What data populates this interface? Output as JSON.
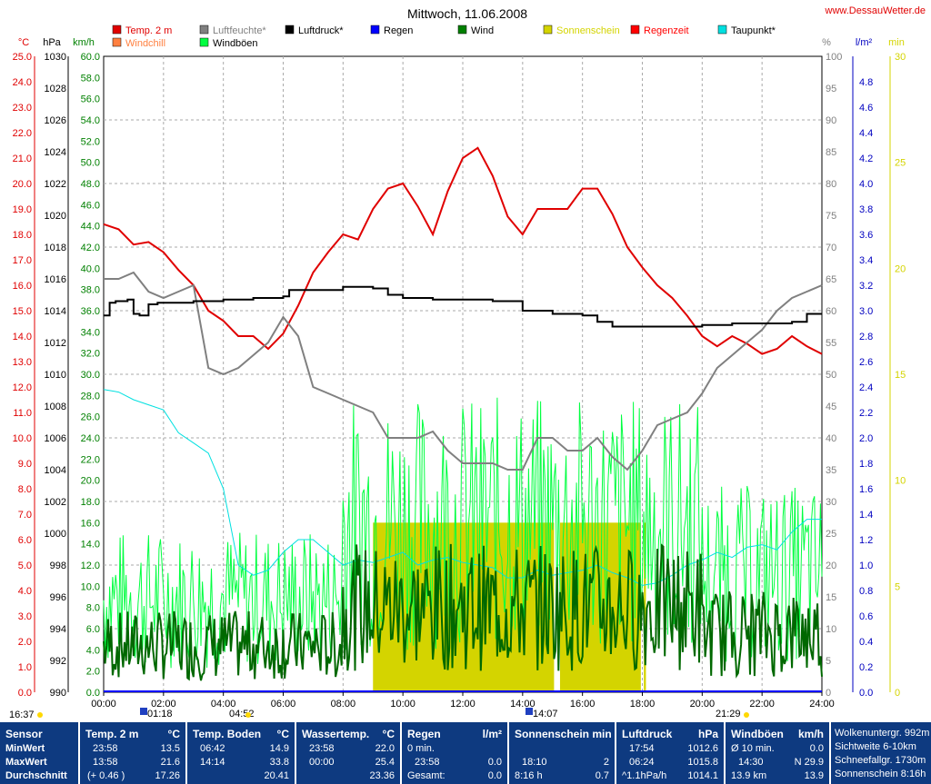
{
  "header": {
    "title": "Mittwoch, 11.06.2008",
    "website": "www.DessauWetter.de"
  },
  "legend": [
    {
      "label": "Temp. 2 m",
      "color": "#e00000"
    },
    {
      "label": "Luftfeuchte*",
      "color": "#808080"
    },
    {
      "label": "Luftdruck*",
      "color": "#000000"
    },
    {
      "label": "Regen",
      "color": "#0000ff"
    },
    {
      "label": "Wind",
      "color": "#008000"
    },
    {
      "label": "Sonnenschein",
      "color": "#d4d400"
    },
    {
      "label": "Regenzeit",
      "color": "#ff0000"
    },
    {
      "label": "Taupunkt*",
      "color": "#00e0e0"
    },
    {
      "label": "Windchill",
      "color": "#ff8040"
    },
    {
      "label": "Windböen",
      "color": "#00ff40"
    }
  ],
  "axis_units": {
    "temp": "°C",
    "pressure": "hPa",
    "wind": "km/h",
    "humidity": "%",
    "rain": "l/m²",
    "sun": "min"
  },
  "events": {
    "sunrise": "04:52",
    "sunset": "21:29",
    "moonrise": "01:18",
    "moonset": "14:07",
    "day_length": "16:37"
  },
  "chart_data": {
    "type": "line",
    "x_ticks": [
      "00:00",
      "02:00",
      "04:00",
      "06:00",
      "08:00",
      "10:00",
      "12:00",
      "14:00",
      "16:00",
      "18:00",
      "20:00",
      "22:00",
      "24:00"
    ],
    "axes": {
      "temp": {
        "unit": "°C",
        "range": [
          0,
          25
        ],
        "ticks": [
          "0.0",
          "1.0",
          "2.0",
          "3.0",
          "4.0",
          "5.0",
          "6.0",
          "7.0",
          "8.0",
          "9.0",
          "10.0",
          "11.0",
          "12.0",
          "13.0",
          "14.0",
          "15.0",
          "16.0",
          "17.0",
          "18.0",
          "19.0",
          "20.0",
          "21.0",
          "22.0",
          "23.0",
          "24.0",
          "25.0"
        ]
      },
      "pressure": {
        "unit": "hPa",
        "range": [
          990,
          1030
        ],
        "ticks": [
          "990",
          "992",
          "994",
          "996",
          "998",
          "1000",
          "1002",
          "1004",
          "1006",
          "1008",
          "1010",
          "1012",
          "1014",
          "1016",
          "1018",
          "1020",
          "1022",
          "1024",
          "1026",
          "1028",
          "1030"
        ]
      },
      "wind": {
        "unit": "km/h",
        "range": [
          0,
          60
        ],
        "ticks": [
          "0.0",
          "2.0",
          "4.0",
          "6.0",
          "8.0",
          "10.0",
          "12.0",
          "14.0",
          "16.0",
          "18.0",
          "20.0",
          "22.0",
          "24.0",
          "26.0",
          "28.0",
          "30.0",
          "32.0",
          "34.0",
          "36.0",
          "38.0",
          "40.0",
          "42.0",
          "44.0",
          "46.0",
          "48.0",
          "50.0",
          "52.0",
          "54.0",
          "56.0",
          "58.0",
          "60.0"
        ]
      },
      "humidity": {
        "unit": "%",
        "range": [
          0,
          100
        ],
        "ticks": [
          "0",
          "5",
          "10",
          "15",
          "20",
          "25",
          "30",
          "35",
          "40",
          "45",
          "50",
          "55",
          "60",
          "65",
          "70",
          "75",
          "80",
          "85",
          "90",
          "95",
          "100"
        ]
      },
      "rain": {
        "unit": "l/m²",
        "range": [
          0,
          5
        ],
        "ticks": [
          "0.0",
          "0.2",
          "0.4",
          "0.6",
          "0.8",
          "1.0",
          "1.2",
          "1.4",
          "1.6",
          "1.8",
          "2.0",
          "2.2",
          "2.4",
          "2.6",
          "2.8",
          "3.0",
          "3.2",
          "3.4",
          "3.6",
          "3.8",
          "4.0",
          "4.2",
          "4.4",
          "4.6",
          "4.8"
        ]
      },
      "sun": {
        "unit": "min",
        "range": [
          0,
          30
        ],
        "ticks": [
          "0",
          "5",
          "10",
          "15",
          "20",
          "25",
          "30"
        ]
      }
    },
    "series": [
      {
        "name": "Temp. 2 m",
        "axis": "temp",
        "color": "#e00000",
        "x": [
          0,
          0.5,
          1,
          1.5,
          2,
          2.5,
          3,
          3.5,
          4,
          4.5,
          5,
          5.5,
          6,
          6.5,
          7,
          7.5,
          8,
          8.5,
          9,
          9.5,
          10,
          10.5,
          11,
          11.5,
          12,
          12.5,
          13,
          13.5,
          14,
          14.5,
          15,
          15.5,
          16,
          16.5,
          17,
          17.5,
          18,
          18.5,
          19,
          19.5,
          20,
          20.5,
          21,
          21.5,
          22,
          22.5,
          23,
          23.5,
          24
        ],
        "y": [
          18.4,
          18.2,
          17.6,
          17.7,
          17.3,
          16.6,
          16.0,
          15.0,
          14.6,
          14.0,
          14.0,
          13.5,
          14.1,
          15.2,
          16.5,
          17.3,
          18.0,
          17.8,
          19.0,
          19.8,
          20.0,
          19.1,
          18.0,
          19.7,
          21.0,
          21.4,
          20.3,
          18.7,
          18.0,
          19.0,
          19.0,
          19.0,
          19.8,
          19.8,
          18.8,
          17.5,
          16.7,
          16.0,
          15.5,
          14.8,
          14.0,
          13.6,
          14.0,
          13.7,
          13.3,
          13.5,
          14.0,
          13.6,
          13.3
        ]
      },
      {
        "name": "Luftfeuchte*",
        "axis": "humidity",
        "color": "#808080",
        "x": [
          0,
          0.5,
          1,
          1.5,
          2,
          2.5,
          3,
          3.5,
          4,
          4.5,
          5,
          5.5,
          6,
          6.5,
          7,
          7.5,
          8,
          8.5,
          9,
          9.5,
          10,
          10.5,
          11,
          11.5,
          12,
          12.5,
          13,
          13.5,
          14,
          14.5,
          15,
          15.5,
          16,
          16.5,
          17,
          17.5,
          18,
          18.5,
          19,
          19.5,
          20,
          20.5,
          21,
          21.5,
          22,
          22.5,
          23,
          23.5,
          24
        ],
        "y": [
          65,
          65,
          66,
          63,
          62,
          63,
          64,
          51,
          50,
          51,
          53,
          55,
          59,
          56,
          48,
          47,
          46,
          45,
          44,
          40,
          40,
          40,
          41,
          38,
          36,
          36,
          36,
          35,
          35,
          40,
          40,
          38,
          38,
          40,
          37,
          35,
          38,
          42,
          43,
          44,
          47,
          51,
          53,
          55,
          57,
          60,
          62,
          63,
          64
        ]
      },
      {
        "name": "Luftdruck*",
        "axis": "pressure",
        "color": "#000000",
        "x": [
          0,
          0.2,
          0.4,
          0.8,
          1.0,
          1.2,
          1.5,
          1.8,
          2.2,
          3.0,
          4.0,
          5.0,
          6.0,
          6.2,
          8.0,
          9.0,
          9.5,
          10.0,
          11.0,
          12.0,
          13.0,
          13.8,
          14.0,
          15.0,
          16.0,
          16.5,
          17.0,
          18.0,
          19.0,
          20.0,
          21.0,
          22.0,
          22.5,
          23.0,
          23.5,
          24.0
        ],
        "y": [
          1013.7,
          1014.5,
          1014.6,
          1014.7,
          1013.8,
          1013.7,
          1014.4,
          1014.5,
          1014.5,
          1014.6,
          1014.7,
          1014.8,
          1014.9,
          1015.3,
          1015.5,
          1015.4,
          1015.0,
          1014.8,
          1014.7,
          1014.7,
          1014.6,
          1014.6,
          1014.0,
          1013.8,
          1013.7,
          1013.3,
          1013.0,
          1013.0,
          1013.0,
          1013.1,
          1013.2,
          1013.2,
          1013.2,
          1013.3,
          1013.8,
          1013.8
        ]
      },
      {
        "name": "Taupunkt*",
        "axis": "temp",
        "color": "#00e0e0",
        "x": [
          0,
          0.5,
          1,
          1.5,
          2,
          2.5,
          3,
          3.5,
          4,
          4.5,
          5,
          5.5,
          6,
          6.5,
          7,
          7.5,
          8,
          8.5,
          9,
          9.5,
          10,
          10.5,
          11,
          11.5,
          12,
          12.5,
          13,
          13.5,
          14,
          14.5,
          15,
          15.5,
          16,
          16.5,
          17,
          17.5,
          18,
          18.5,
          19,
          19.5,
          20,
          20.5,
          21,
          21.5,
          22,
          22.5,
          23,
          23.5,
          24
        ],
        "y": [
          11.9,
          11.8,
          11.5,
          11.3,
          11.1,
          10.2,
          9.8,
          9.4,
          8.0,
          5.0,
          4.6,
          4.8,
          5.5,
          6.0,
          6.0,
          5.5,
          5.0,
          5.2,
          5.1,
          5.3,
          5.5,
          5.0,
          5.2,
          5.3,
          5.1,
          5.0,
          4.9,
          4.5,
          4.5,
          4.8,
          4.6,
          4.7,
          4.8,
          5.0,
          4.7,
          4.5,
          4.2,
          4.3,
          4.6,
          5.0,
          5.2,
          5.5,
          5.3,
          5.7,
          5.8,
          5.6,
          6.3,
          6.8,
          6.8
        ]
      }
    ],
    "wind": {
      "name": "Wind",
      "axis": "wind",
      "color": "#006800",
      "range_min": 0,
      "range_max": 16
    },
    "wind_gusts": {
      "name": "Windböen",
      "axis": "wind",
      "color": "#00ff40",
      "range_max": 30
    },
    "sunshine": {
      "name": "Sonnenschein",
      "axis": "sun",
      "color": "#d4d400",
      "blocks": [
        {
          "from": 9.0,
          "to": 15.05,
          "value": 8
        },
        {
          "from": 15.25,
          "to": 17.95,
          "value": 8
        },
        {
          "from": 18.05,
          "to": 18.12,
          "value": 8
        }
      ]
    },
    "rain_total": 0.0
  },
  "table": {
    "sensor_col": {
      "header": "Sensor",
      "rows": [
        "MinWert",
        "MaxWert",
        "Durchschnitt"
      ]
    },
    "temp": {
      "header": "Temp. 2 m",
      "unit": "°C",
      "min_time": "23:58",
      "min_val": "13.5",
      "max_time": "13:58",
      "max_val": "21.6",
      "avg_note": "(+ 0.46 )",
      "avg_val": "17.26"
    },
    "ground": {
      "header": "Temp. Boden",
      "unit": "°C",
      "min_time": "06:42",
      "min_val": "14.9",
      "max_time": "14:14",
      "max_val": "33.8",
      "avg_val": "20.41"
    },
    "water": {
      "header": "Wassertemp.",
      "unit": "°C",
      "min_time": "23:58",
      "min_val": "22.0",
      "max_time": "00:00",
      "max_val": "25.4",
      "avg_val": "23.36"
    },
    "rain": {
      "header": "Regen",
      "unit": "l/m²",
      "r1_label": "0 min.",
      "r2_time": "23:58",
      "r2_val": "0.0",
      "r3_label": "Gesamt:",
      "r3_val": "0.0"
    },
    "sun": {
      "header": "Sonnenschein min",
      "r2_time": "18:10",
      "r2_val": "2",
      "r3_label": "8:16 h",
      "r3_val": "0.7"
    },
    "pressure": {
      "header": "Luftdruck",
      "unit": "hPa",
      "min_time": "17:54",
      "min_val": "1012.6",
      "max_time": "06:24",
      "max_val": "1015.8",
      "avg_note": "^1.1hPa/h",
      "avg_val": "1014.1"
    },
    "gusts": {
      "header": "Windböen",
      "unit": "km/h",
      "r1_label": "Ø 10 min.",
      "r1_val": "0.0",
      "r2_time": "14:30",
      "r2_val": "N 29.9",
      "r3_label": "13.9 km",
      "r3_val": "13.9"
    },
    "extra": {
      "r0": "Wolkenuntergr.  992m",
      "r1": "Sichtweite    6-10km",
      "r2": "Schneefallgr.  1730m",
      "r3": "Sonnenschein  8:16h"
    }
  }
}
